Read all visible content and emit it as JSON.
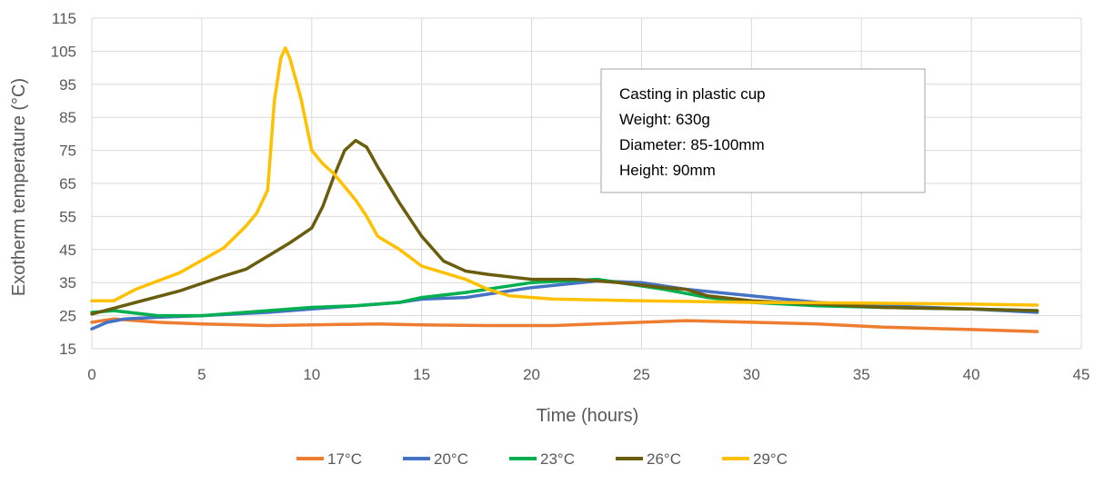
{
  "chart_data": {
    "type": "line",
    "title": "",
    "xlabel": "Time (hours)",
    "ylabel": "Exotherm temperature (°C)",
    "xlim": [
      0,
      45
    ],
    "ylim": [
      15,
      115
    ],
    "xticks": [
      0,
      5,
      10,
      15,
      20,
      25,
      30,
      35,
      40,
      45
    ],
    "yticks": [
      15,
      25,
      35,
      45,
      55,
      65,
      75,
      85,
      95,
      105,
      115
    ],
    "grid": true,
    "legend_position": "bottom",
    "annotation": [
      "Casting in plastic cup",
      "Weight: 630g",
      "Diameter: 85-100mm",
      "Height: 90mm"
    ],
    "series": [
      {
        "name": "17°C",
        "color": "#ED7D31",
        "x": [
          0,
          1,
          3,
          5,
          8,
          11,
          13,
          15,
          18,
          21,
          25,
          27,
          30,
          33,
          36,
          40,
          43
        ],
        "y": [
          23,
          24,
          23,
          22.5,
          22,
          22.3,
          22.5,
          22.2,
          22,
          22,
          23,
          23.5,
          23,
          22.5,
          21.5,
          20.8,
          20.2
        ]
      },
      {
        "name": "20°C",
        "color": "#4472C4",
        "x": [
          0,
          0.7,
          1.5,
          3,
          5,
          8,
          10,
          12,
          14,
          15,
          17,
          20,
          23,
          25,
          27,
          30,
          33,
          36,
          40,
          43
        ],
        "y": [
          21,
          23,
          24,
          24.5,
          25,
          26,
          27,
          28,
          29,
          30,
          30.5,
          33.5,
          35.5,
          35,
          33,
          31,
          29,
          28,
          27,
          26
        ]
      },
      {
        "name": "23°C",
        "color": "#00B050",
        "x": [
          0,
          1,
          3,
          5,
          8,
          10,
          12,
          14,
          15,
          17,
          20,
          23,
          26,
          28,
          30,
          33,
          36,
          40,
          43
        ],
        "y": [
          26,
          26.5,
          25,
          25,
          26.5,
          27.5,
          28,
          29,
          30.5,
          32,
          35,
          36,
          33,
          30.5,
          29,
          28,
          27.5,
          27,
          26.5
        ]
      },
      {
        "name": "26°C",
        "color": "#6B5D0E",
        "x": [
          0,
          2,
          4,
          6,
          7,
          8,
          9,
          10,
          10.5,
          11,
          11.5,
          12,
          12.5,
          13,
          14,
          15,
          16,
          17,
          18,
          20,
          22,
          24,
          26,
          27,
          28,
          30,
          33,
          36,
          40,
          43
        ],
        "y": [
          25.5,
          29,
          32.5,
          37,
          39,
          43,
          47,
          51.5,
          58,
          67,
          75,
          78,
          76,
          70,
          59,
          49,
          41.5,
          38.5,
          37.5,
          36,
          36,
          35,
          33.5,
          33,
          31,
          29.5,
          28.5,
          27.5,
          27,
          26.5
        ]
      },
      {
        "name": "29°C",
        "color": "#FFC000",
        "x": [
          0,
          1,
          2,
          4,
          6,
          7,
          7.5,
          8,
          8.3,
          8.6,
          8.8,
          9,
          9.5,
          10,
          10.5,
          11,
          12,
          12.5,
          13,
          14,
          15,
          16,
          17,
          18,
          19,
          21,
          25,
          30,
          35,
          40,
          43
        ],
        "y": [
          29.5,
          29.5,
          33,
          38,
          45.5,
          52,
          56,
          63,
          90,
          103,
          106,
          103,
          91,
          75,
          71,
          68,
          60,
          55,
          49,
          45,
          40,
          38,
          36,
          33,
          31,
          30,
          29.5,
          29,
          28.8,
          28.5,
          28.2
        ]
      }
    ]
  }
}
